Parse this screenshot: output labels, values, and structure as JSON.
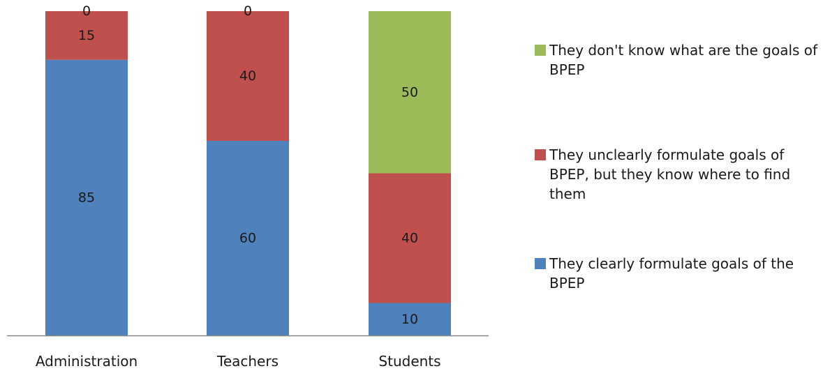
{
  "chart_data": {
    "type": "bar",
    "stacked": true,
    "categories": [
      "Administration",
      "Teachers",
      "Students"
    ],
    "series": [
      {
        "name": "They clearly formulate goals of the BPEP",
        "color": "#4f81bd",
        "values": [
          85,
          60,
          10
        ]
      },
      {
        "name": "They unclearly formulate goals of BPEP, but they know where to find them",
        "color": "#c0504d",
        "values": [
          15,
          40,
          40
        ]
      },
      {
        "name": "They don't know what are the goals of BPEP",
        "color": "#9bbb59",
        "values": [
          0,
          0,
          50
        ]
      }
    ],
    "ylim": [
      0,
      100
    ],
    "legend_position": "right",
    "legend_order": [
      2,
      1,
      0
    ],
    "grid": false
  }
}
